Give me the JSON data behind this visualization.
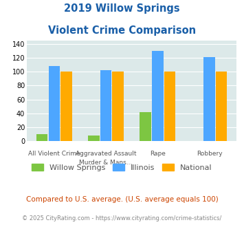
{
  "title_line1": "2019 Willow Springs",
  "title_line2": "Violent Crime Comparison",
  "cat_labels_top": [
    "",
    "Aggravated Assault",
    "",
    ""
  ],
  "cat_labels_bot": [
    "All Violent Crime",
    "Murder & Mans...",
    "Rape",
    "Robbery"
  ],
  "willow_springs": [
    10,
    8,
    42,
    0
  ],
  "illinois": [
    108,
    102,
    130,
    121
  ],
  "national": [
    100,
    100,
    100,
    100
  ],
  "colors": {
    "willow_springs": "#7dc642",
    "illinois": "#4da6ff",
    "national": "#ffaa00"
  },
  "ylim": [
    0,
    145
  ],
  "yticks": [
    0,
    20,
    40,
    60,
    80,
    100,
    120,
    140
  ],
  "plot_bg": "#dce9e9",
  "footnote1": "Compared to U.S. average. (U.S. average equals 100)",
  "footnote2": "© 2025 CityRating.com - https://www.cityrating.com/crime-statistics/",
  "title_color": "#1a5fa8",
  "footnote1_color": "#cc4400",
  "footnote2_color": "#888888",
  "legend_labels": [
    "Willow Springs",
    "Illinois",
    "National"
  ]
}
